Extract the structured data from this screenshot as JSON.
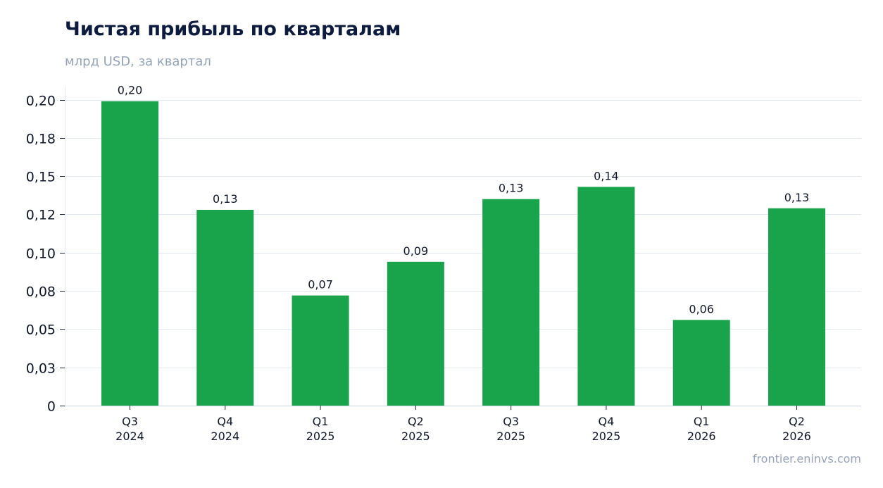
{
  "header": {
    "title": "Чистая прибыль по кварталам",
    "subtitle": "млрд USD, за квартал"
  },
  "footer": {
    "source": "frontier.eninvs.com"
  },
  "colors": {
    "bar": "#19a44b",
    "grid": "#e2e8f0",
    "text": "#0f172a"
  },
  "chart_data": {
    "type": "bar",
    "categories": [
      [
        "Q3",
        "2024"
      ],
      [
        "Q4",
        "2024"
      ],
      [
        "Q1",
        "2025"
      ],
      [
        "Q2",
        "2025"
      ],
      [
        "Q3",
        "2025"
      ],
      [
        "Q4",
        "2025"
      ],
      [
        "Q1",
        "2026"
      ],
      [
        "Q2",
        "2026"
      ]
    ],
    "values": [
      0.199,
      0.128,
      0.072,
      0.094,
      0.135,
      0.143,
      0.056,
      0.129
    ],
    "data_labels": [
      "0,20",
      "0,13",
      "0,07",
      "0,09",
      "0,13",
      "0,14",
      "0,06",
      "0,13"
    ],
    "yticks": [
      0,
      0.025,
      0.05,
      0.075,
      0.1,
      0.125,
      0.15,
      0.175,
      0.2
    ],
    "ytick_labels": [
      "0",
      "0,03",
      "0,05",
      "0,08",
      "0,10",
      "0,12",
      "0,15",
      "0,18",
      "0,20"
    ],
    "ylim": [
      0,
      0.209
    ],
    "grid": true,
    "legend": false
  }
}
